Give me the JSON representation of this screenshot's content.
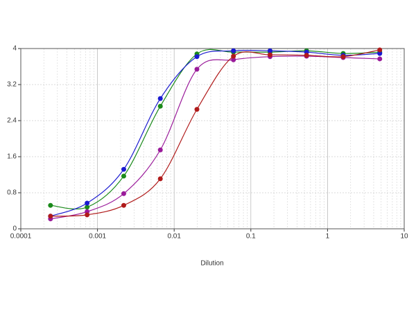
{
  "chart_data": {
    "type": "scatter",
    "x_label": "Dilution",
    "x_log": true,
    "grid": true,
    "x": [
      0.000244,
      0.000732,
      0.0022,
      0.0066,
      0.0198,
      0.0593,
      0.178,
      0.533,
      1.6,
      4.8
    ],
    "series": [
      {
        "color": "#1a8a1a",
        "values": [
          0.52,
          0.48,
          1.17,
          2.72,
          3.88,
          3.92,
          3.92,
          3.95,
          3.89,
          3.92
        ]
      },
      {
        "color": "#1a1ad0",
        "values": [
          0.28,
          0.57,
          1.32,
          2.89,
          3.82,
          3.95,
          3.95,
          3.92,
          3.85,
          3.89
        ]
      },
      {
        "color": "#9a1a9a",
        "values": [
          0.22,
          0.38,
          0.78,
          1.75,
          3.54,
          3.75,
          3.82,
          3.83,
          3.8,
          3.77
        ]
      },
      {
        "color": "#b01a1a",
        "values": [
          0.28,
          0.31,
          0.52,
          1.11,
          2.65,
          3.83,
          3.86,
          3.85,
          3.82,
          3.97
        ]
      }
    ],
    "xlim": [
      0.0001,
      10
    ],
    "xticks": [
      0.0001,
      0.001,
      0.01,
      0.1,
      1,
      10
    ],
    "ylim": [
      0,
      4
    ],
    "yticks": [
      0,
      0.8,
      1.6,
      2.4,
      3.2,
      4
    ]
  }
}
